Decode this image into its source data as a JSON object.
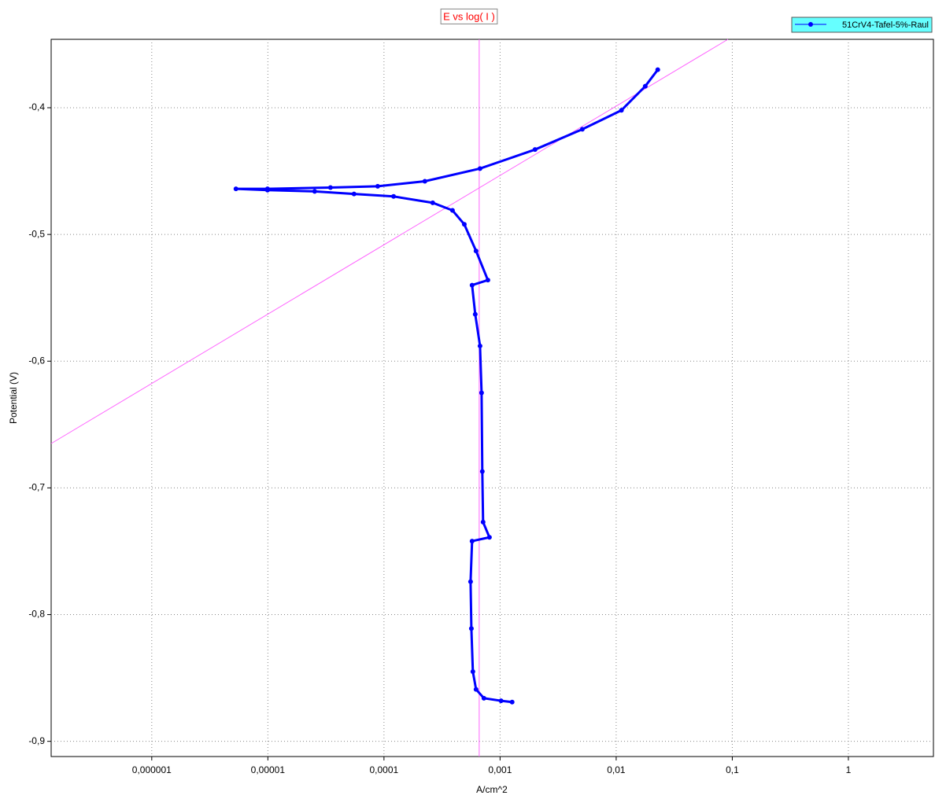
{
  "chart_data": {
    "type": "line",
    "title": "E vs log( I )",
    "x_label": "A/cm^2",
    "y_label": "Potential (V)",
    "log_x": true,
    "grid": true,
    "legend": "top-right",
    "xlim": [
      1.36e-07,
      5.4
    ],
    "ylim": [
      -0.912,
      -0.346
    ],
    "xticks": [
      {
        "value": 1e-06,
        "label": "0,000001"
      },
      {
        "value": 1e-05,
        "label": "0,00001"
      },
      {
        "value": 0.0001,
        "label": "0,0001"
      },
      {
        "value": 0.001,
        "label": "0,001"
      },
      {
        "value": 0.01,
        "label": "0,01"
      },
      {
        "value": 0.1,
        "label": "0,1"
      },
      1
    ],
    "yticks": [
      {
        "value": -0.4,
        "label": "-0,4"
      },
      {
        "value": -0.5,
        "label": "-0,5"
      },
      {
        "value": -0.6,
        "label": "-0,6"
      },
      {
        "value": -0.7,
        "label": "-0,7"
      },
      {
        "value": -0.8,
        "label": "-0,8"
      },
      {
        "value": -0.9,
        "label": "-0,9"
      }
    ],
    "series": [
      {
        "name": "51CrV4-Tafel-5%-Raul",
        "color": "#0000ff",
        "x": [
          0.00127,
          0.00102,
          0.000726,
          0.000621,
          0.000583,
          0.000566,
          0.000557,
          0.000574,
          0.00081,
          0.000714,
          0.000703,
          0.000693,
          0.000672,
          0.000611,
          0.000574,
          0.000785,
          0.000621,
          0.000492,
          0.000389,
          0.000263,
          0.000121,
          5.52e-05,
          2.53e-05,
          9.93e-06,
          5.31e-06,
          9.93e-06,
          3.46e-05,
          8.83e-05,
          0.000225,
          0.000672,
          0.002,
          0.00511,
          0.0111,
          0.0178,
          0.0228
        ],
        "values": [
          -0.869,
          -0.868,
          -0.866,
          -0.859,
          -0.845,
          -0.811,
          -0.774,
          -0.742,
          -0.739,
          -0.727,
          -0.687,
          -0.625,
          -0.588,
          -0.563,
          -0.54,
          -0.536,
          -0.513,
          -0.492,
          -0.481,
          -0.475,
          -0.47,
          -0.468,
          -0.466,
          -0.465,
          -0.464,
          -0.464,
          -0.463,
          -0.462,
          -0.458,
          -0.448,
          -0.433,
          -0.417,
          -0.402,
          -0.383,
          -0.37
        ]
      }
    ],
    "fit_lines": [
      {
        "color": "#ff66ff",
        "x": [
          0.000661,
          0.000661
        ],
        "y": [
          -0.912,
          -0.346
        ]
      },
      {
        "color": "#ff66ff",
        "x": [
          1.36e-07,
          0.0918
        ],
        "y": [
          -0.665,
          -0.346
        ]
      }
    ]
  }
}
